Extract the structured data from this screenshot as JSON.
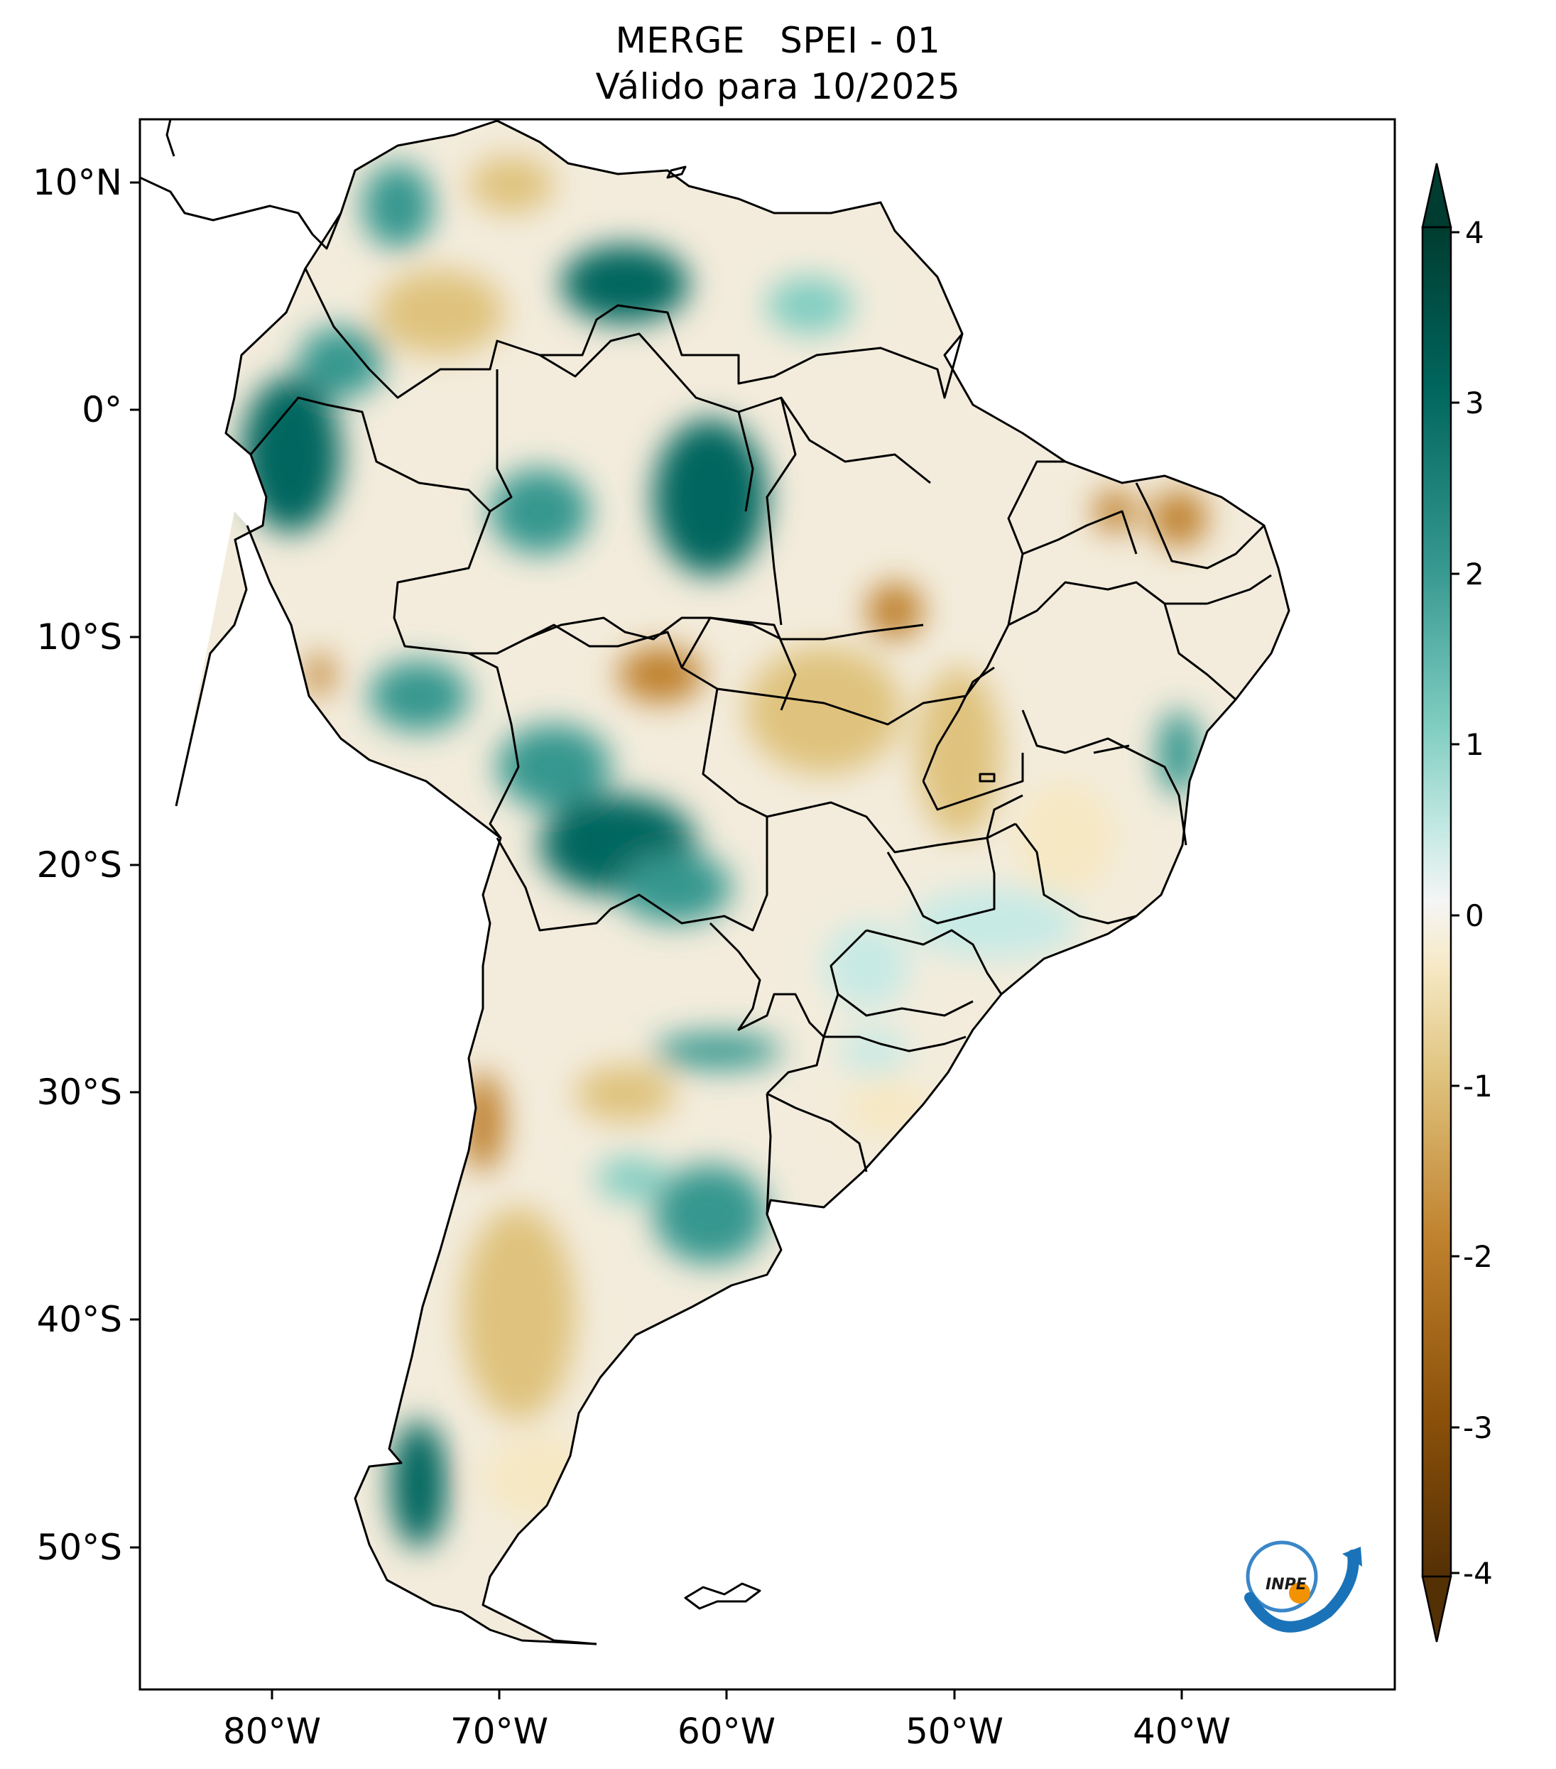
{
  "title": {
    "line1": "MERGE   SPEI - 01",
    "line2": "Válido para 10/2025"
  },
  "axes": {
    "lat_ticks": [
      "10°N",
      "0°",
      "10°S",
      "20°S",
      "30°S",
      "40°S",
      "50°S"
    ],
    "lon_ticks": [
      "80°W",
      "70°W",
      "60°W",
      "50°W",
      "40°W"
    ]
  },
  "colorbar": {
    "ticks": [
      "4",
      "3",
      "2",
      "1",
      "0",
      "-1",
      "-2",
      "-3",
      "-4"
    ],
    "colors": {
      "wet_extreme": "#003c30",
      "wet_strong": "#01665e",
      "wet_moderate": "#35978f",
      "wet_light": "#80cdc1",
      "wet_faint": "#c7eae5",
      "neutral": "#f5f5f5",
      "dry_faint": "#f6e8c3",
      "dry_light": "#dfc27d",
      "dry_moderate": "#bf812d",
      "dry_strong": "#8c510a",
      "dry_extreme": "#543005"
    }
  },
  "logo": {
    "text": "INPE"
  }
}
